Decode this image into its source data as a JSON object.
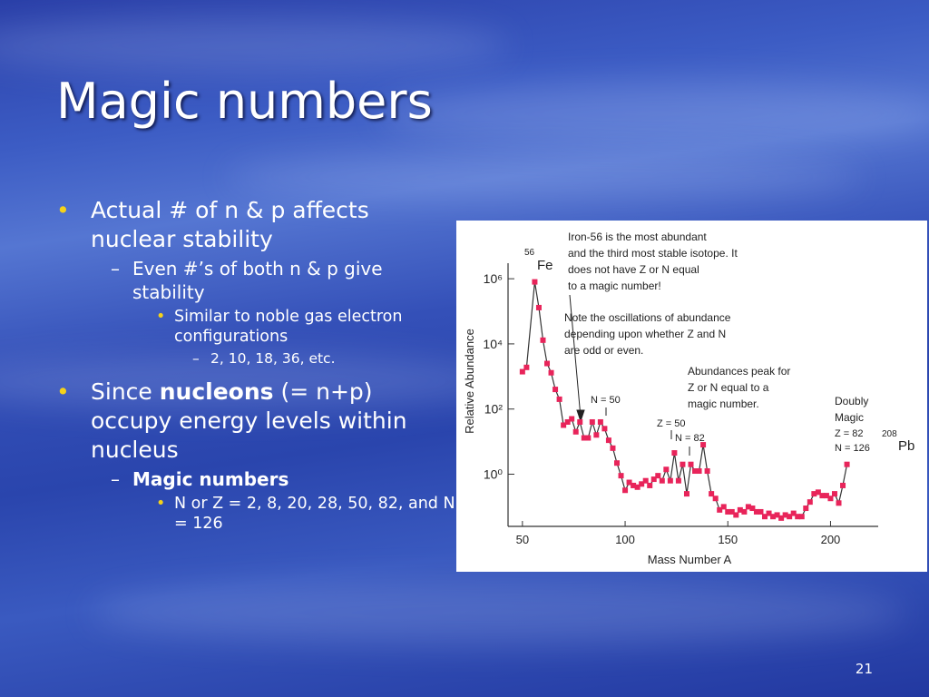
{
  "slide": {
    "title": "Magic numbers",
    "bullets": [
      {
        "runs": [
          {
            "text": "Actual # of n & p affects nuclear stability"
          }
        ],
        "children": [
          {
            "runs": [
              {
                "text": "Even #’s of both n & p give stability"
              }
            ],
            "children": [
              {
                "runs": [
                  {
                    "text": "Similar to noble gas electron configurations"
                  }
                ],
                "children": [
                  {
                    "runs": [
                      {
                        "text": "2, 10, 18, 36, etc."
                      }
                    ]
                  }
                ]
              }
            ]
          }
        ]
      },
      {
        "runs": [
          {
            "text": "Since "
          },
          {
            "text": "nucleons",
            "bold": true
          },
          {
            "text": " (= n+p) occupy energy levels within nucleus"
          }
        ],
        "children": [
          {
            "runs": [
              {
                "text": "Magic numbers",
                "bold": true
              }
            ],
            "children": [
              {
                "runs": [
                  {
                    "text": "N or Z = 2, 8, 20, 28, 50, 82, and N = 126"
                  }
                ]
              }
            ]
          }
        ]
      }
    ],
    "page_number": "21"
  },
  "chart_data": {
    "type": "line",
    "yscale": "log",
    "color": "#e8245a",
    "line_color": "#333333",
    "xlabel": "Mass Number A",
    "ylabel": "Relative Abundance",
    "x": [
      50,
      52,
      56,
      58,
      60,
      62,
      64,
      66,
      68,
      70,
      72,
      74,
      76,
      78,
      80,
      82,
      84,
      86,
      88,
      90,
      92,
      94,
      96,
      98,
      100,
      102,
      104,
      106,
      108,
      110,
      112,
      114,
      116,
      118,
      120,
      122,
      124,
      126,
      128,
      130,
      132,
      134,
      136,
      138,
      140,
      142,
      144,
      146,
      148,
      150,
      152,
      154,
      156,
      158,
      160,
      162,
      164,
      166,
      168,
      170,
      172,
      174,
      176,
      178,
      180,
      182,
      184,
      186,
      188,
      190,
      192,
      194,
      196,
      198,
      200,
      202,
      204,
      206,
      208
    ],
    "values": [
      1400,
      1900,
      800000,
      130000,
      13000,
      2500,
      1300,
      400,
      200,
      32,
      40,
      50,
      20,
      40,
      13,
      13,
      40,
      16,
      40,
      25,
      11,
      6.3,
      2.2,
      0.9,
      0.32,
      0.56,
      0.45,
      0.4,
      0.5,
      0.63,
      0.45,
      0.7,
      0.9,
      0.63,
      1.4,
      0.63,
      4.5,
      0.63,
      2,
      0.25,
      2,
      1.25,
      1.25,
      8,
      1.25,
      0.25,
      0.18,
      0.08,
      0.1,
      0.07,
      0.07,
      0.056,
      0.08,
      0.07,
      0.1,
      0.09,
      0.07,
      0.07,
      0.05,
      0.063,
      0.05,
      0.056,
      0.045,
      0.056,
      0.05,
      0.063,
      0.05,
      0.05,
      0.09,
      0.14,
      0.25,
      0.28,
      0.22,
      0.22,
      0.18,
      0.25,
      0.13,
      0.45,
      2
    ],
    "xlim": [
      43,
      221
    ],
    "xticks": [
      50,
      100,
      150,
      200
    ],
    "ylim": [
      0.025,
      3000000
    ],
    "yticks": [
      {
        "value": 1,
        "label": "10⁰"
      },
      {
        "value": 100,
        "label": "10²"
      },
      {
        "value": 10000,
        "label": "10⁴"
      },
      {
        "value": 1000000,
        "label": "10⁶"
      }
    ],
    "annotations": [
      [
        "Iron-56 is the most abundant",
        "and the third most stable isotope. It",
        "does not have Z or N equal",
        "to a magic number!"
      ],
      [
        "Note the oscillations of abundance",
        "depending upon whether Z and N",
        "are odd or even."
      ],
      [
        "Abundances peak for",
        "Z or N equal to a",
        "magic number."
      ],
      [
        "Doubly",
        "Magic",
        "Z = 82",
        "N = 126"
      ],
      [
        "56",
        "Fe"
      ],
      [
        "208",
        "Pb"
      ],
      [
        "N = 50"
      ],
      [
        "Z = 50"
      ],
      [
        "N = 82"
      ]
    ]
  }
}
